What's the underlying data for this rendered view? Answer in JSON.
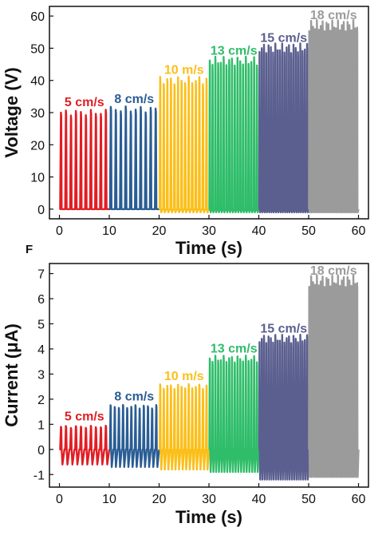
{
  "panel_letter": "F",
  "chart_data": [
    {
      "type": "line",
      "xlabel": "Time (s)",
      "ylabel": "Voltage (V)",
      "xlim": [
        -2,
        62
      ],
      "ylim": [
        -3,
        63
      ],
      "xticks": [
        0,
        10,
        20,
        30,
        40,
        50,
        60
      ],
      "yticks": [
        0,
        10,
        20,
        30,
        40,
        50,
        60
      ],
      "series": [
        {
          "name": "5 cm/s",
          "color": "#e01e24",
          "t_start": 0,
          "t_end": 10,
          "peak": 30,
          "low": 0,
          "pulses": 10
        },
        {
          "name": "8 cm/s",
          "color": "#2a5d94",
          "t_start": 10,
          "t_end": 20,
          "peak": 31,
          "low": 0,
          "pulses": 10
        },
        {
          "name": "10 m/s",
          "color": "#fbbf1a",
          "t_start": 20,
          "t_end": 30,
          "peak": 40,
          "low": -1,
          "pulses": 14
        },
        {
          "name": "13 cm/s",
          "color": "#2fbd69",
          "t_start": 30,
          "t_end": 40,
          "peak": 46,
          "low": -1,
          "pulses": 18
        },
        {
          "name": "15 cm/s",
          "color": "#5b5f8f",
          "t_start": 40,
          "t_end": 50,
          "peak": 50,
          "low": -1,
          "pulses": 22
        },
        {
          "name": "18 cm/s",
          "color": "#9b9b9b",
          "t_start": 50,
          "t_end": 60,
          "peak": 57,
          "low": -1,
          "pulses": 26
        }
      ]
    },
    {
      "type": "line",
      "xlabel": "Time (s)",
      "ylabel": "Current (μA)",
      "xlim": [
        -2,
        62
      ],
      "ylim": [
        -1.5,
        7.4
      ],
      "xticks": [
        0,
        10,
        20,
        30,
        40,
        50,
        60
      ],
      "yticks": [
        -1,
        0,
        1,
        2,
        3,
        4,
        5,
        6,
        7
      ],
      "series": [
        {
          "name": "5 cm/s",
          "color": "#e01e24",
          "t_start": 0,
          "t_end": 10,
          "peak": 0.9,
          "low": -0.6,
          "pulses": 10
        },
        {
          "name": "8 cm/s",
          "color": "#2a5d94",
          "t_start": 10,
          "t_end": 20,
          "peak": 1.7,
          "low": -0.7,
          "pulses": 12
        },
        {
          "name": "10 m/s",
          "color": "#fbbf1a",
          "t_start": 20,
          "t_end": 30,
          "peak": 2.5,
          "low": -0.8,
          "pulses": 14
        },
        {
          "name": "13 cm/s",
          "color": "#2fbd69",
          "t_start": 30,
          "t_end": 40,
          "peak": 3.6,
          "low": -0.9,
          "pulses": 18
        },
        {
          "name": "15 cm/s",
          "color": "#5b5f8f",
          "t_start": 40,
          "t_end": 50,
          "peak": 4.4,
          "low": -1.2,
          "pulses": 22
        },
        {
          "name": "18 cm/s",
          "color": "#9b9b9b",
          "t_start": 50,
          "t_end": 60,
          "peak": 6.7,
          "low": -1.1,
          "pulses": 26
        }
      ]
    }
  ]
}
